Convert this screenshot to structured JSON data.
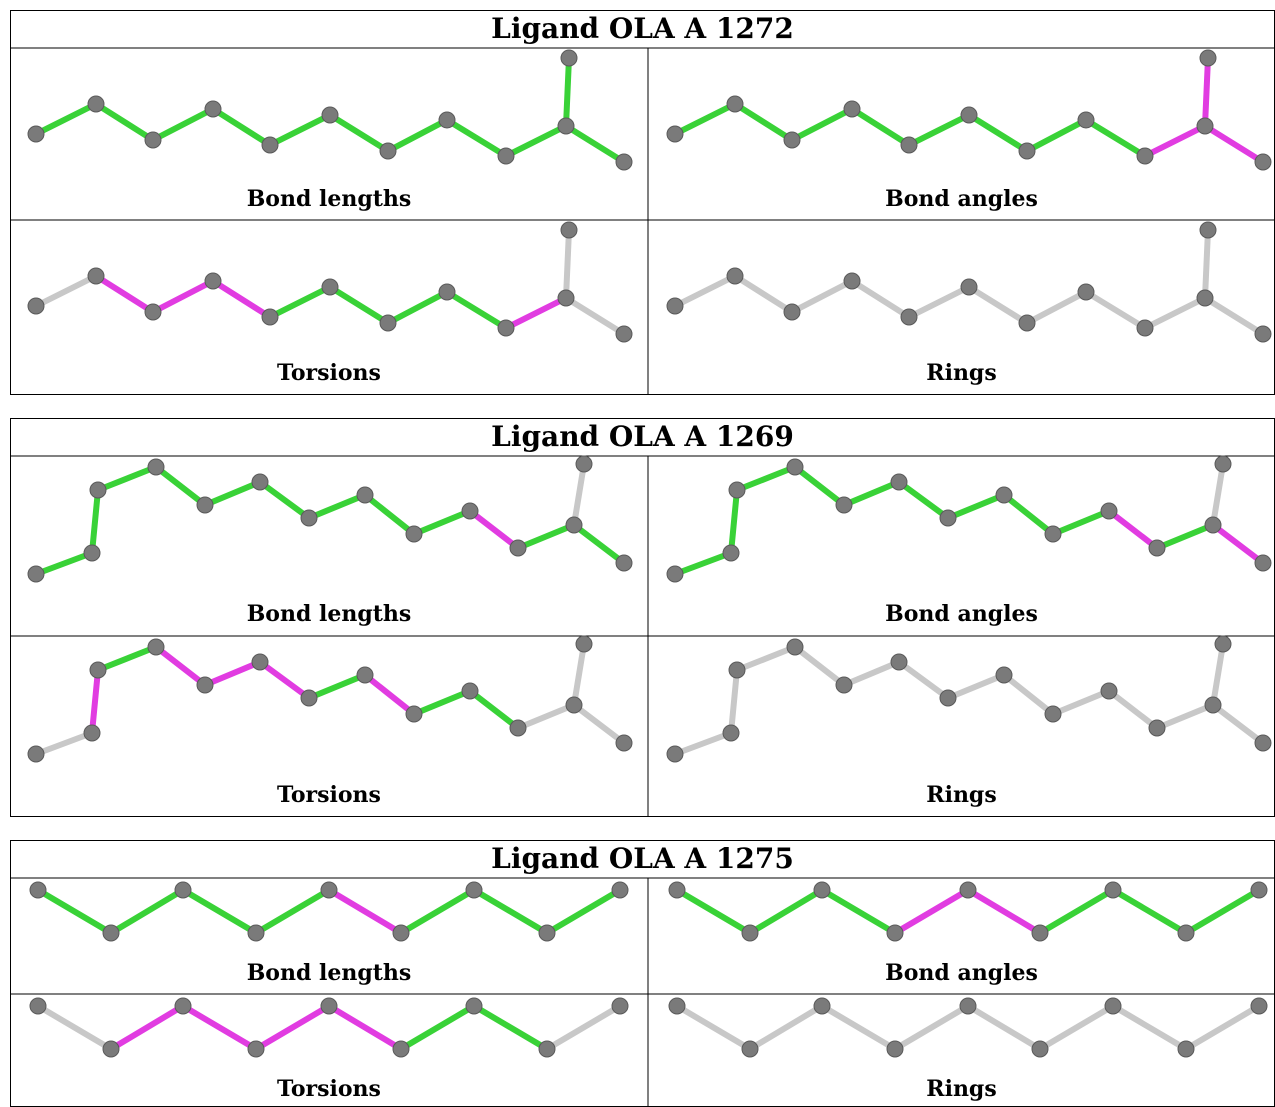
{
  "colors": {
    "ok": "#39d237",
    "outlier": "#e13ce1",
    "unassessed": "#c8c8c8",
    "atom": "#7a7a7a",
    "border": "#000000"
  },
  "panel_labels": [
    "Bond lengths",
    "Bond angles",
    "Torsions",
    "Rings"
  ],
  "blocks": [
    {
      "title": "Ligand OLA A 1272",
      "panels": [
        {
          "label": "Bond lengths",
          "bonds": [
            "ok",
            "ok",
            "ok",
            "ok",
            "ok",
            "ok",
            "ok",
            "ok",
            "ok",
            "ok",
            "ok"
          ]
        },
        {
          "label": "Bond angles",
          "bonds": [
            "ok",
            "ok",
            "ok",
            "ok",
            "ok",
            "ok",
            "ok",
            "ok",
            "outlier",
            "outlier",
            "outlier"
          ]
        },
        {
          "label": "Torsions",
          "bonds": [
            "unassessed",
            "outlier",
            "outlier",
            "outlier",
            "ok",
            "ok",
            "ok",
            "ok",
            "outlier",
            "unassessed",
            "unassessed"
          ]
        },
        {
          "label": "Rings",
          "bonds": [
            "unassessed",
            "unassessed",
            "unassessed",
            "unassessed",
            "unassessed",
            "unassessed",
            "unassessed",
            "unassessed",
            "unassessed",
            "unassessed",
            "unassessed"
          ]
        }
      ]
    },
    {
      "title": "Ligand OLA A 1269",
      "panels": [
        {
          "label": "Bond lengths",
          "bonds": [
            "ok",
            "ok",
            "ok",
            "ok",
            "ok",
            "ok",
            "ok",
            "ok",
            "ok",
            "outlier",
            "ok",
            "ok"
          ]
        },
        {
          "label": "Bond angles",
          "bonds": [
            "ok",
            "ok",
            "ok",
            "ok",
            "ok",
            "ok",
            "ok",
            "ok",
            "ok",
            "outlier",
            "ok",
            "outlier"
          ]
        },
        {
          "label": "Torsions",
          "bonds": [
            "unassessed",
            "outlier",
            "ok",
            "outlier",
            "outlier",
            "outlier",
            "ok",
            "outlier",
            "ok",
            "ok",
            "unassessed",
            "unassessed"
          ]
        },
        {
          "label": "Rings",
          "bonds": [
            "unassessed",
            "unassessed",
            "unassessed",
            "unassessed",
            "unassessed",
            "unassessed",
            "unassessed",
            "unassessed",
            "unassessed",
            "unassessed",
            "unassessed",
            "unassessed"
          ]
        }
      ]
    },
    {
      "title": "Ligand OLA A 1275",
      "panels": [
        {
          "label": "Bond lengths",
          "bonds": [
            "ok",
            "ok",
            "ok",
            "ok",
            "outlier",
            "ok",
            "ok",
            "ok"
          ]
        },
        {
          "label": "Bond angles",
          "bonds": [
            "ok",
            "ok",
            "ok",
            "outlier",
            "outlier",
            "ok",
            "ok",
            "ok"
          ]
        },
        {
          "label": "Torsions",
          "bonds": [
            "unassessed",
            "outlier",
            "outlier",
            "outlier",
            "outlier",
            "ok",
            "ok",
            "unassessed"
          ]
        },
        {
          "label": "Rings",
          "bonds": [
            "unassessed",
            "unassessed",
            "unassessed",
            "unassessed",
            "unassessed",
            "unassessed",
            "unassessed",
            "unassessed"
          ]
        }
      ]
    }
  ]
}
